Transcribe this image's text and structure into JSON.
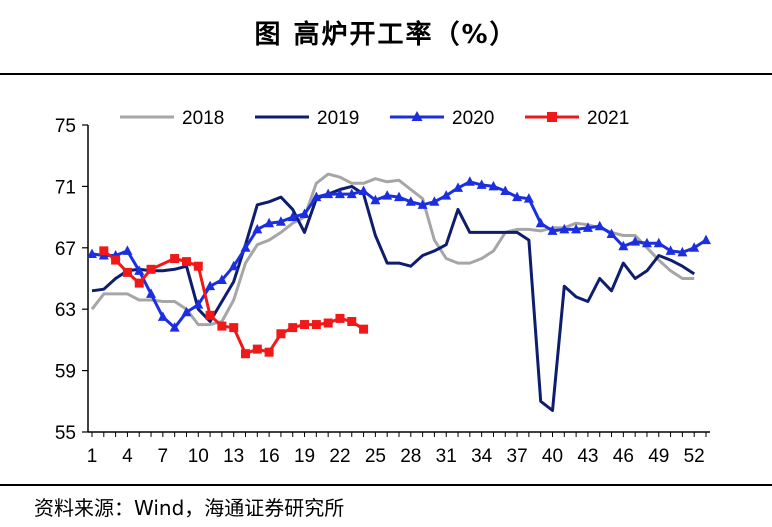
{
  "title": "图  高炉开工率（%）",
  "source": "资料来源：Wind，海通证券研究所",
  "chart_data": {
    "type": "line",
    "xlim": [
      1,
      53
    ],
    "ylim": [
      55,
      75
    ],
    "yticks": [
      "75",
      "71",
      "67",
      "63",
      "59",
      "55"
    ],
    "xticks": [
      "1",
      "4",
      "7",
      "10",
      "13",
      "16",
      "19",
      "22",
      "25",
      "28",
      "31",
      "34",
      "37",
      "40",
      "43",
      "46",
      "49",
      "52"
    ],
    "grid": false,
    "legend": "top",
    "series": [
      {
        "name": "2018",
        "color": "#a6a6a6",
        "marker": "none",
        "x": [
          1,
          2,
          3,
          4,
          5,
          6,
          7,
          8,
          9,
          10,
          11,
          12,
          13,
          14,
          15,
          16,
          17,
          18,
          19,
          20,
          21,
          22,
          23,
          24,
          25,
          26,
          27,
          28,
          29,
          30,
          31,
          32,
          33,
          34,
          35,
          36,
          37,
          38,
          39,
          40,
          41,
          42,
          43,
          44,
          45,
          46,
          47,
          48,
          49,
          50,
          51,
          52
        ],
        "y": [
          63.0,
          64.0,
          64.0,
          64.0,
          63.6,
          63.6,
          63.5,
          63.5,
          63.0,
          62.0,
          62.0,
          62.2,
          63.6,
          66.0,
          67.2,
          67.5,
          68.0,
          68.6,
          69.0,
          71.2,
          71.8,
          71.6,
          71.2,
          71.2,
          71.5,
          71.3,
          71.4,
          70.8,
          70.2,
          67.5,
          66.3,
          66.0,
          66.0,
          66.3,
          66.8,
          68.0,
          68.2,
          68.2,
          68.1,
          68.3,
          68.3,
          68.6,
          68.5,
          68.3,
          68.0,
          67.8,
          67.8,
          67.0,
          66.2,
          65.5,
          65.0,
          65.0
        ]
      },
      {
        "name": "2019",
        "color": "#0f1d6e",
        "marker": "none",
        "x": [
          1,
          2,
          3,
          4,
          5,
          6,
          7,
          8,
          9,
          10,
          11,
          12,
          13,
          14,
          15,
          16,
          17,
          18,
          19,
          20,
          21,
          22,
          23,
          24,
          25,
          26,
          27,
          28,
          29,
          30,
          31,
          32,
          33,
          34,
          35,
          36,
          37,
          38,
          39,
          40,
          41,
          42,
          43,
          44,
          45,
          46,
          47,
          48,
          49,
          50,
          51,
          52
        ],
        "y": [
          64.2,
          64.3,
          65.0,
          65.5,
          65.6,
          65.5,
          65.5,
          65.6,
          65.8,
          63.0,
          62.2,
          63.5,
          64.8,
          67.2,
          69.8,
          70.0,
          70.3,
          69.5,
          68.0,
          70.2,
          70.5,
          70.8,
          71.0,
          70.5,
          67.8,
          66.0,
          66.0,
          65.8,
          66.5,
          66.8,
          67.2,
          69.5,
          68.0,
          68.0,
          68.0,
          68.0,
          68.0,
          67.5,
          57.0,
          56.4,
          64.5,
          63.8,
          63.5,
          65.0,
          64.2,
          66.0,
          65.0,
          65.5,
          66.5,
          66.2,
          65.8,
          65.3
        ]
      },
      {
        "name": "2020",
        "color": "#1c2fe0",
        "marker": "triangle",
        "x": [
          1,
          2,
          3,
          4,
          5,
          6,
          7,
          8,
          9,
          10,
          11,
          12,
          13,
          14,
          15,
          16,
          17,
          18,
          19,
          20,
          21,
          22,
          23,
          24,
          25,
          26,
          27,
          28,
          29,
          30,
          31,
          32,
          33,
          34,
          35,
          36,
          37,
          38,
          39,
          40,
          41,
          42,
          43,
          44,
          45,
          46,
          47,
          48,
          49,
          50,
          51,
          52,
          53
        ],
        "y": [
          66.6,
          66.5,
          66.5,
          66.8,
          65.5,
          64.0,
          62.5,
          61.8,
          62.8,
          63.3,
          64.5,
          64.9,
          65.8,
          67.0,
          68.2,
          68.6,
          68.7,
          69.0,
          69.2,
          70.3,
          70.5,
          70.5,
          70.5,
          70.7,
          70.1,
          70.4,
          70.3,
          70.0,
          69.8,
          70.0,
          70.4,
          70.9,
          71.3,
          71.1,
          71.0,
          70.7,
          70.3,
          70.2,
          68.6,
          68.1,
          68.2,
          68.2,
          68.3,
          68.4,
          67.9,
          67.1,
          67.4,
          67.3,
          67.3,
          66.8,
          66.7,
          67.0,
          67.5
        ]
      },
      {
        "name": "2021",
        "color": "#f01818",
        "marker": "square",
        "x": [
          2,
          3,
          4,
          5,
          6,
          8,
          9,
          10,
          11,
          12,
          13,
          14,
          15,
          16,
          17,
          18,
          19,
          20,
          21,
          22,
          23,
          24
        ],
        "y": [
          66.8,
          66.2,
          65.4,
          64.7,
          65.6,
          66.3,
          66.1,
          65.8,
          62.6,
          61.9,
          61.8,
          60.1,
          60.4,
          60.2,
          61.4,
          61.8,
          62.0,
          62.0,
          62.1,
          62.4,
          62.2,
          61.7
        ]
      }
    ]
  }
}
